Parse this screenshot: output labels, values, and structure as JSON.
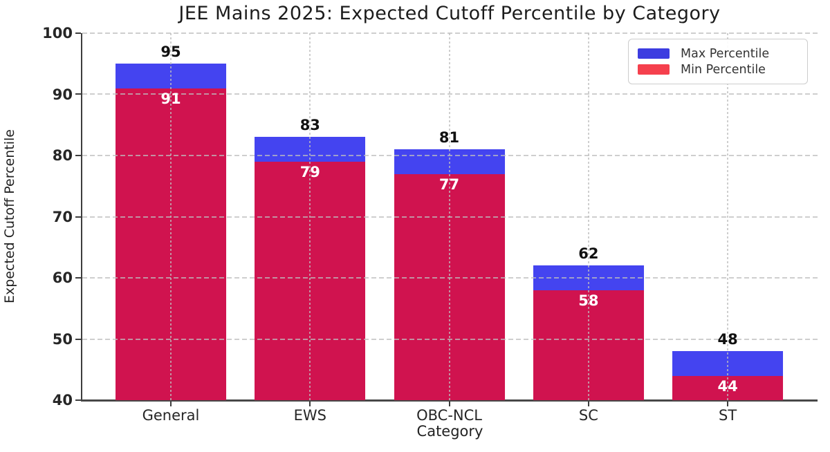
{
  "title": {
    "text": "JEE Mains 2025: Expected Cutoff Percentile by Category"
  },
  "axes": {
    "xlabel": "Category",
    "ylabel": "Expected Cutoff Percentile"
  },
  "legend": {
    "position": "upper right",
    "items": [
      {
        "label": "Max Percentile",
        "swatch_color": "#3c3ce0"
      },
      {
        "label": "Min Percentile",
        "swatch_color": "#f5404d"
      }
    ]
  },
  "chart_data": {
    "type": "bar",
    "variant": "overlaid-range-bars",
    "title": "JEE Mains 2025: Expected Cutoff Percentile by Category",
    "xlabel": "Category",
    "ylabel": "Expected Cutoff Percentile",
    "categories": [
      "General",
      "EWS",
      "OBC-NCL",
      "SC",
      "ST"
    ],
    "series": [
      {
        "name": "Max Percentile",
        "values": [
          95,
          83,
          81,
          62,
          48
        ],
        "color": "#4444f0"
      },
      {
        "name": "Min Percentile",
        "values": [
          91,
          79,
          77,
          58,
          44
        ],
        "color": "#d0134f"
      }
    ],
    "ylim": [
      40,
      100
    ],
    "yticks": [
      40,
      50,
      60,
      70,
      80,
      90,
      100
    ],
    "grid": true,
    "grid_style": "dashed",
    "grid_over_bars": true,
    "legend_position": "upper right",
    "value_labels": {
      "max_color": "#111111",
      "min_color": "#ffffff"
    }
  },
  "colors": {
    "grid": "#bdbdbd",
    "axis_spine": "#3d3d3d",
    "tick_text": "#262626",
    "title_text": "#1c1c1c",
    "max_bar": "#4444f0",
    "min_bar": "#d0134f"
  }
}
